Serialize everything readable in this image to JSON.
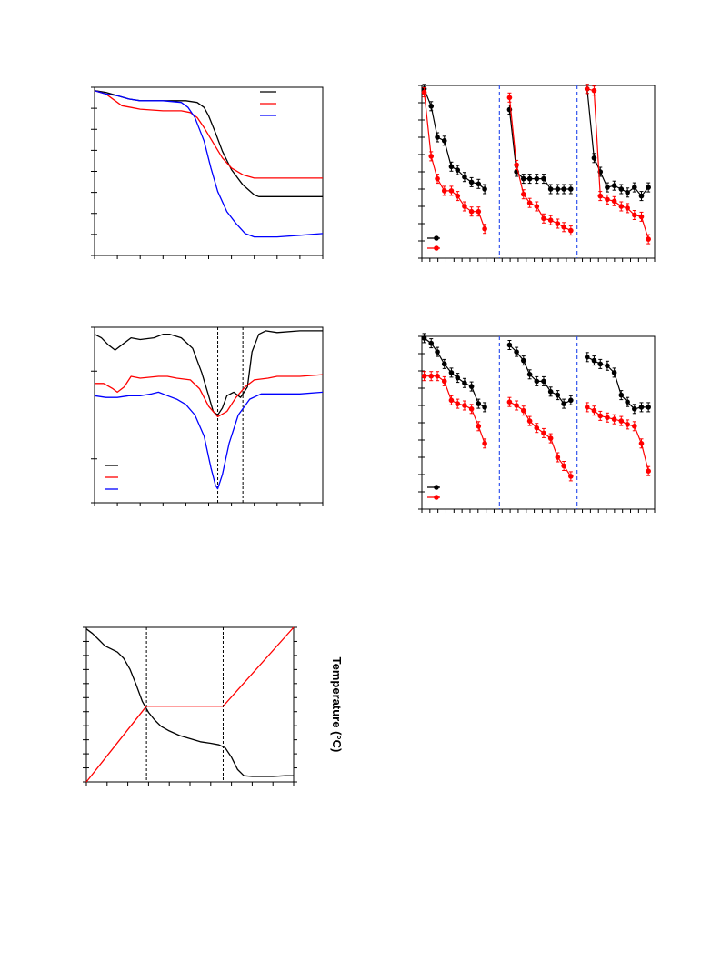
{
  "figure": {
    "right_axis_label_c": "Temperature (°C)"
  },
  "colors": {
    "black": "#000000",
    "red": "#ff0000",
    "blue": "#0000ff",
    "divider_blue": "#3355ee"
  },
  "chart_data": [
    {
      "id": "a",
      "type": "line",
      "title": "",
      "xlabel": "",
      "ylabel": "",
      "xlim": [
        0,
        10
      ],
      "ylim": [
        0,
        10
      ],
      "grid": false,
      "legend": {
        "placement": "top-right",
        "entries": [
          "",
          "",
          ""
        ]
      },
      "series": [
        {
          "color": "#000000",
          "x": [
            0,
            0.5,
            1,
            1.5,
            2,
            3,
            4,
            4.5,
            4.8,
            5,
            5.3,
            5.6,
            6,
            6.5,
            7,
            7.2,
            7.5,
            8,
            9,
            10
          ],
          "y": [
            9.8,
            9.7,
            9.5,
            9.3,
            9.2,
            9.2,
            9.2,
            9.1,
            8.8,
            8.3,
            7.3,
            6.2,
            5.1,
            4.2,
            3.6,
            3.5,
            3.5,
            3.5,
            3.5,
            3.5
          ]
        },
        {
          "color": "#ff0000",
          "x": [
            0,
            0.5,
            0.9,
            1.2,
            1.6,
            2,
            3,
            3.8,
            4.2,
            4.5,
            4.8,
            5.2,
            5.6,
            6,
            6.5,
            7,
            7.3,
            7.6,
            8,
            9,
            10
          ],
          "y": [
            9.8,
            9.6,
            9.2,
            8.9,
            8.8,
            8.7,
            8.6,
            8.6,
            8.5,
            8.2,
            7.6,
            6.7,
            5.8,
            5.2,
            4.8,
            4.6,
            4.6,
            4.6,
            4.6,
            4.6,
            4.6
          ]
        },
        {
          "color": "#0000ff",
          "x": [
            0,
            0.5,
            1,
            1.5,
            2,
            3,
            3.8,
            4.1,
            4.4,
            4.8,
            5.1,
            5.4,
            5.8,
            6.2,
            6.6,
            7,
            7.4,
            8,
            9,
            10
          ],
          "y": [
            9.8,
            9.6,
            9.5,
            9.3,
            9.2,
            9.2,
            9.1,
            8.8,
            8.2,
            6.8,
            5.2,
            3.8,
            2.6,
            1.9,
            1.3,
            1.1,
            1.1,
            1.1,
            1.2,
            1.3
          ]
        }
      ]
    },
    {
      "id": "b",
      "type": "scatter",
      "title": "",
      "xlabel": "",
      "ylabel": "",
      "xlim": [
        0,
        30
      ],
      "ylim": [
        0,
        10
      ],
      "grid": false,
      "dividers": [
        10,
        20
      ],
      "legend": {
        "placement": "bottom-left",
        "entries": [
          "",
          ""
        ]
      },
      "series": [
        {
          "color": "#000000",
          "x": [
            0.3,
            1.2,
            2,
            2.9,
            3.8,
            4.6,
            5.5,
            6.4,
            7.3,
            8.1,
            11.3,
            12.2,
            13.1,
            13.9,
            14.8,
            15.7,
            16.6,
            17.5,
            18.3,
            19.2,
            21.3,
            22.2,
            23,
            23.9,
            24.8,
            25.7,
            26.5,
            27.4,
            28.3,
            29.2
          ],
          "y": [
            9.8,
            8.8,
            7.0,
            6.8,
            5.3,
            5.1,
            4.7,
            4.4,
            4.3,
            4.0,
            8.6,
            5.0,
            4.6,
            4.6,
            4.6,
            4.6,
            4.0,
            4.0,
            4.0,
            4.0,
            9.8,
            5.8,
            5.0,
            4.1,
            4.2,
            4.0,
            3.8,
            4.1,
            3.6,
            4.1
          ]
        },
        {
          "color": "#ff0000",
          "x": [
            0.3,
            1.2,
            2,
            2.9,
            3.8,
            4.6,
            5.5,
            6.4,
            7.3,
            8.1,
            11.3,
            12.2,
            13.1,
            13.9,
            14.8,
            15.7,
            16.6,
            17.5,
            18.3,
            19.2,
            21.3,
            22.2,
            23,
            23.9,
            24.8,
            25.7,
            26.5,
            27.4,
            28.3,
            29.2
          ],
          "y": [
            9.6,
            5.9,
            4.6,
            3.9,
            3.9,
            3.6,
            3.0,
            2.7,
            2.7,
            1.7,
            9.3,
            5.4,
            3.7,
            3.2,
            3.0,
            2.3,
            2.2,
            2.0,
            1.8,
            1.6,
            9.8,
            9.7,
            3.6,
            3.4,
            3.3,
            3.0,
            2.9,
            2.5,
            2.4,
            1.1
          ]
        }
      ]
    },
    {
      "id": "c",
      "type": "line",
      "title": "",
      "xlabel": "",
      "ylabel": "",
      "xlim": [
        0,
        10
      ],
      "ylim": [
        0,
        10
      ],
      "grid": false,
      "reference_lines_x": [
        5.4,
        6.5
      ],
      "legend": {
        "placement": "bottom-left",
        "entries": [
          "",
          "",
          ""
        ]
      },
      "series": [
        {
          "color": "#000000",
          "x": [
            0,
            0.3,
            0.6,
            0.9,
            1.2,
            1.6,
            2,
            2.6,
            3,
            3.3,
            3.8,
            4.3,
            4.7,
            5.0,
            5.2,
            5.4,
            5.6,
            5.8,
            6.1,
            6.4,
            6.7,
            6.9,
            7.2,
            7.5,
            8,
            9,
            10
          ],
          "y": [
            9.6,
            9.4,
            9.0,
            8.7,
            9.0,
            9.4,
            9.3,
            9.4,
            9.6,
            9.6,
            9.4,
            8.8,
            7.4,
            6.1,
            5.2,
            5.0,
            5.4,
            6.1,
            6.3,
            6.0,
            6.6,
            8.6,
            9.6,
            9.8,
            9.7,
            9.8,
            9.8
          ]
        },
        {
          "color": "#ff0000",
          "x": [
            0,
            0.4,
            0.8,
            1.0,
            1.3,
            1.6,
            2,
            2.8,
            3.2,
            3.6,
            4.2,
            4.6,
            5,
            5.4,
            5.8,
            6.2,
            6.6,
            7,
            7.6,
            8,
            9,
            10
          ],
          "y": [
            6.8,
            6.8,
            6.5,
            6.3,
            6.6,
            7.2,
            7.1,
            7.2,
            7.2,
            7.1,
            7.0,
            6.5,
            5.5,
            4.9,
            5.2,
            6.0,
            6.6,
            7.0,
            7.1,
            7.2,
            7.2,
            7.3
          ]
        },
        {
          "color": "#0000ff",
          "x": [
            0,
            0.5,
            1,
            1.5,
            2,
            2.5,
            2.8,
            3.2,
            3.6,
            4,
            4.4,
            4.8,
            5.1,
            5.3,
            5.4,
            5.6,
            5.9,
            6.3,
            6.8,
            7.3,
            8,
            9,
            10
          ],
          "y": [
            6.1,
            6.0,
            6.0,
            6.1,
            6.1,
            6.2,
            6.3,
            6.1,
            5.9,
            5.6,
            5.0,
            3.8,
            2.0,
            1.0,
            0.8,
            1.6,
            3.4,
            5.0,
            5.9,
            6.2,
            6.2,
            6.2,
            6.3
          ]
        }
      ]
    },
    {
      "id": "d",
      "type": "scatter",
      "title": "",
      "xlabel": "",
      "ylabel": "",
      "xlim": [
        0,
        30
      ],
      "ylim": [
        0,
        10
      ],
      "grid": false,
      "dividers": [
        10,
        20
      ],
      "legend": {
        "placement": "bottom-left",
        "entries": [
          "",
          ""
        ]
      },
      "series": [
        {
          "color": "#000000",
          "x": [
            0.3,
            1.2,
            2,
            2.9,
            3.8,
            4.6,
            5.5,
            6.4,
            7.3,
            8.1,
            11.3,
            12.2,
            13.1,
            13.9,
            14.8,
            15.7,
            16.6,
            17.5,
            18.3,
            19.2,
            21.3,
            22.2,
            23,
            23.9,
            24.8,
            25.7,
            26.5,
            27.4,
            28.3,
            29.2
          ],
          "y": [
            9.9,
            9.6,
            9.1,
            8.4,
            7.9,
            7.6,
            7.3,
            7.1,
            6.1,
            5.9,
            9.5,
            9.1,
            8.6,
            7.8,
            7.4,
            7.4,
            6.8,
            6.6,
            6.1,
            6.3,
            8.8,
            8.6,
            8.4,
            8.3,
            7.9,
            6.6,
            6.2,
            5.8,
            5.9,
            5.9
          ]
        },
        {
          "color": "#ff0000",
          "x": [
            0.3,
            1.2,
            2,
            2.9,
            3.8,
            4.6,
            5.5,
            6.4,
            7.3,
            8.1,
            11.3,
            12.2,
            13.1,
            13.9,
            14.8,
            15.7,
            16.6,
            17.5,
            18.3,
            19.2,
            21.3,
            22.2,
            23,
            23.9,
            24.8,
            25.7,
            26.5,
            27.4,
            28.3,
            29.2
          ],
          "y": [
            7.7,
            7.7,
            7.7,
            7.4,
            6.3,
            6.1,
            6.0,
            5.8,
            4.8,
            3.8,
            6.2,
            6.0,
            5.7,
            5.1,
            4.7,
            4.4,
            4.1,
            3.0,
            2.5,
            1.9,
            5.9,
            5.7,
            5.4,
            5.3,
            5.2,
            5.1,
            4.9,
            4.8,
            3.8,
            2.2
          ]
        }
      ]
    },
    {
      "id": "e",
      "type": "line",
      "title": "",
      "xlabel": "",
      "ylabel": "",
      "xlim": [
        0,
        10
      ],
      "ylim": [
        0,
        10
      ],
      "grid": false,
      "reference_lines_x": [
        2.9,
        6.6
      ],
      "series": [
        {
          "color": "#000000",
          "x": [
            0,
            0.3,
            0.6,
            0.9,
            1.2,
            1.5,
            1.8,
            2.1,
            2.4,
            2.7,
            3,
            3.3,
            3.6,
            4,
            4.5,
            5,
            5.5,
            6,
            6.4,
            6.7,
            7,
            7.3,
            7.6,
            8,
            8.5,
            9,
            9.6,
            10
          ],
          "y": [
            9.9,
            9.6,
            9.2,
            8.8,
            8.6,
            8.4,
            8.0,
            7.3,
            6.3,
            5.2,
            4.5,
            4.0,
            3.6,
            3.3,
            3.0,
            2.8,
            2.6,
            2.5,
            2.4,
            2.2,
            1.6,
            0.8,
            0.4,
            0.35,
            0.35,
            0.35,
            0.4,
            0.4
          ]
        },
        {
          "color": "#ff0000",
          "x": [
            0,
            2.9,
            6.6,
            10
          ],
          "y": [
            0,
            4.9,
            4.9,
            10
          ]
        }
      ]
    }
  ]
}
